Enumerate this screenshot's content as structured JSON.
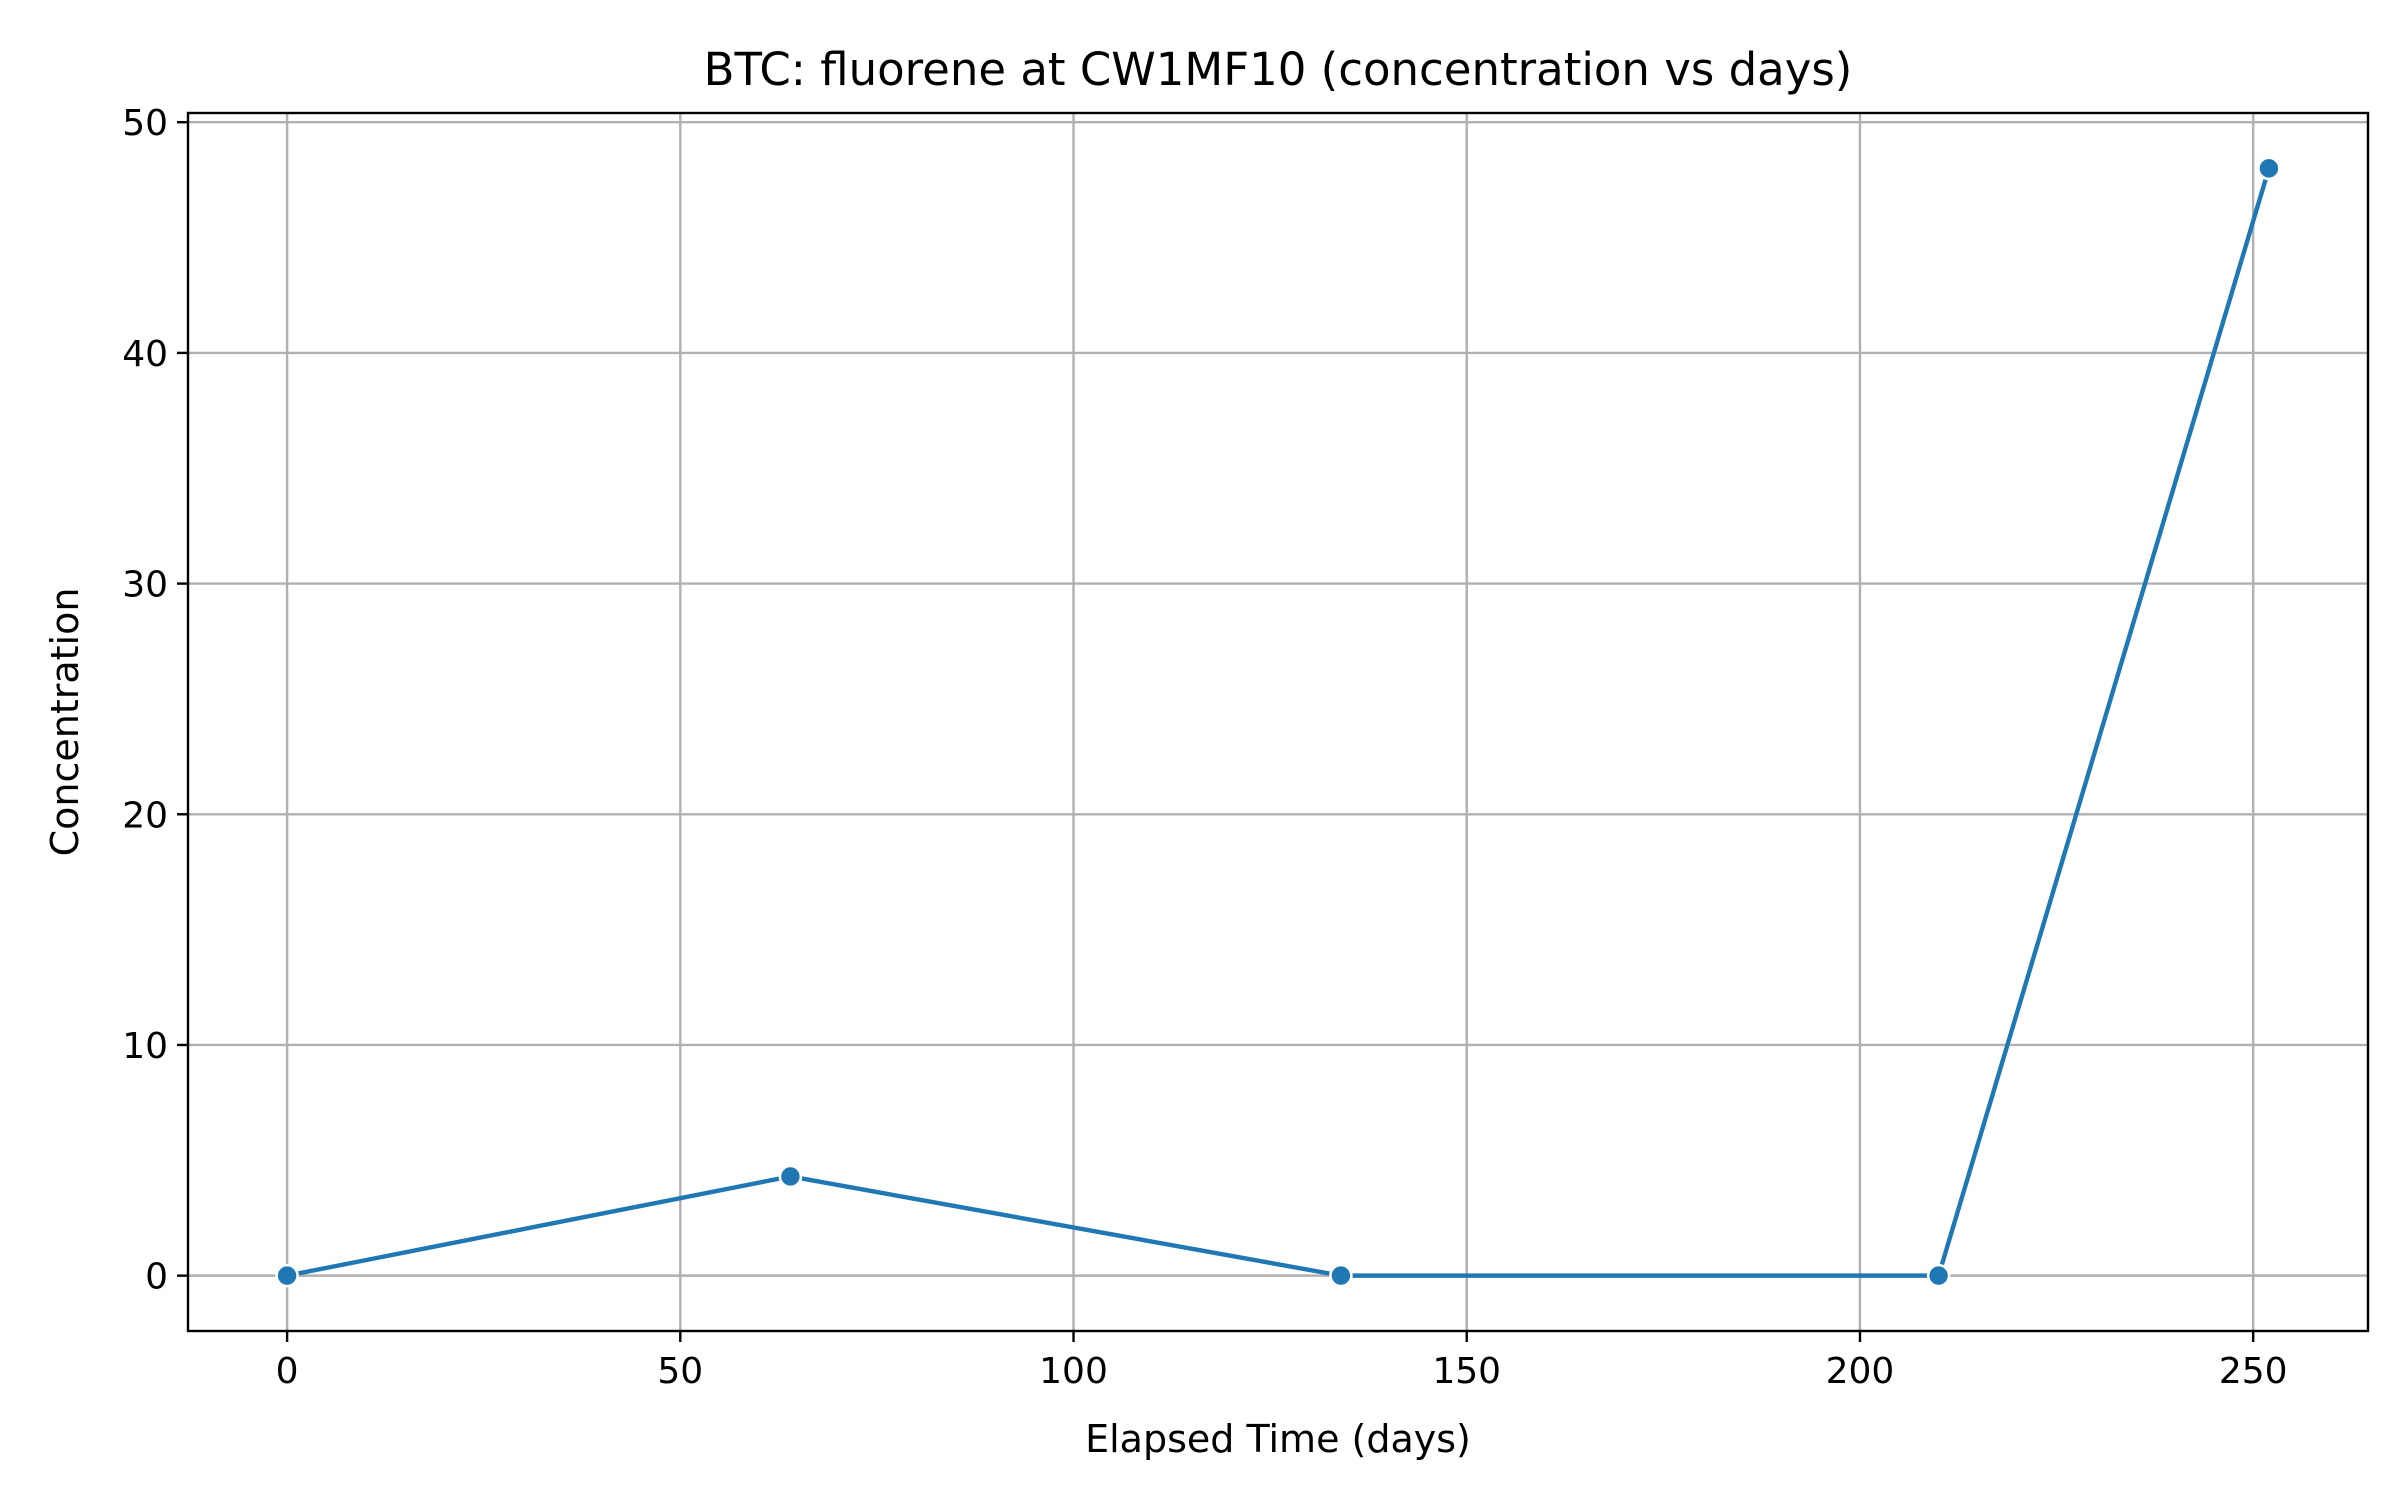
{
  "chart_data": {
    "type": "line",
    "title": "BTC: fluorene at CW1MF10 (concentration vs days)",
    "xlabel": "Elapsed Time (days)",
    "ylabel": "Concentration",
    "xlim": [
      -12.6,
      264.6
    ],
    "ylim": [
      -2.4,
      50.4
    ],
    "xticks": [
      0,
      50,
      100,
      150,
      200,
      250
    ],
    "yticks": [
      0,
      10,
      20,
      30,
      40,
      50
    ],
    "grid": true,
    "series": [
      {
        "color": "#1f77b4",
        "marker": "circle",
        "x": [
          0,
          64,
          134,
          210,
          252
        ],
        "y": [
          0,
          4.3,
          0,
          0,
          48
        ]
      }
    ]
  }
}
